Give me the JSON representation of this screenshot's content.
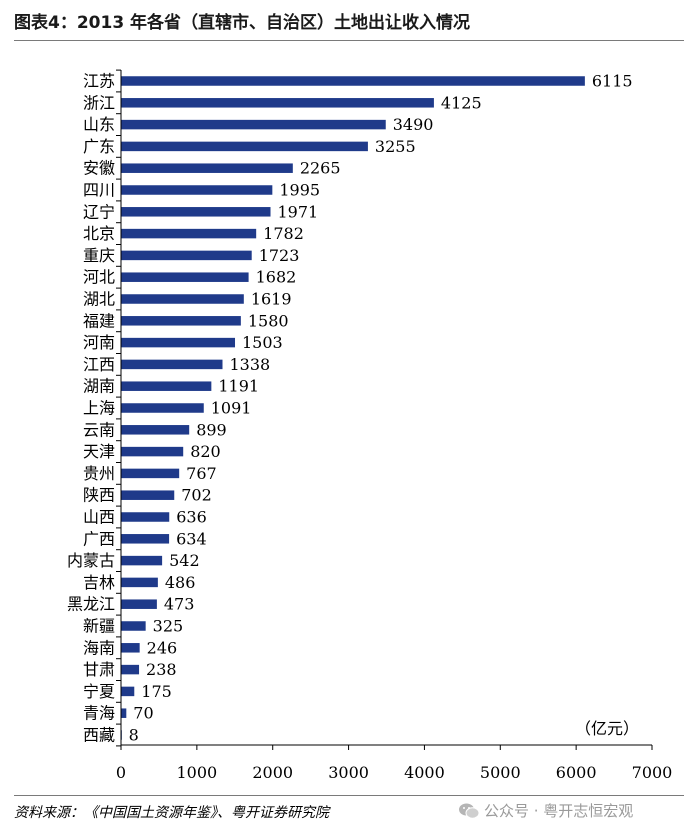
{
  "title": "图表4：2013 年各省（直辖市、自治区）土地出让收入情况",
  "source": "资料来源：《中国国土资源年鉴》、粤开证券研究院",
  "watermark": "公众号 · 粤开志恒宏观",
  "chart_data": {
    "type": "bar",
    "orientation": "horizontal",
    "title": "2013 年各省（直辖市、自治区）土地出让收入情况",
    "unit_label": "（亿元）",
    "bar_color": "#1f3a8a",
    "xlim": [
      0,
      7000
    ],
    "xticks": [
      0,
      1000,
      2000,
      3000,
      4000,
      5000,
      6000,
      7000
    ],
    "categories": [
      "江苏",
      "浙江",
      "山东",
      "广东",
      "安徽",
      "四川",
      "辽宁",
      "北京",
      "重庆",
      "河北",
      "湖北",
      "福建",
      "河南",
      "江西",
      "湖南",
      "上海",
      "云南",
      "天津",
      "贵州",
      "陕西",
      "山西",
      "广西",
      "内蒙古",
      "吉林",
      "黑龙江",
      "新疆",
      "海南",
      "甘肃",
      "宁夏",
      "青海",
      "西藏"
    ],
    "values": [
      6115,
      4125,
      3490,
      3255,
      2265,
      1995,
      1971,
      1782,
      1723,
      1682,
      1619,
      1580,
      1503,
      1338,
      1191,
      1091,
      899,
      820,
      767,
      702,
      636,
      634,
      542,
      486,
      473,
      325,
      246,
      238,
      175,
      70,
      8
    ]
  }
}
